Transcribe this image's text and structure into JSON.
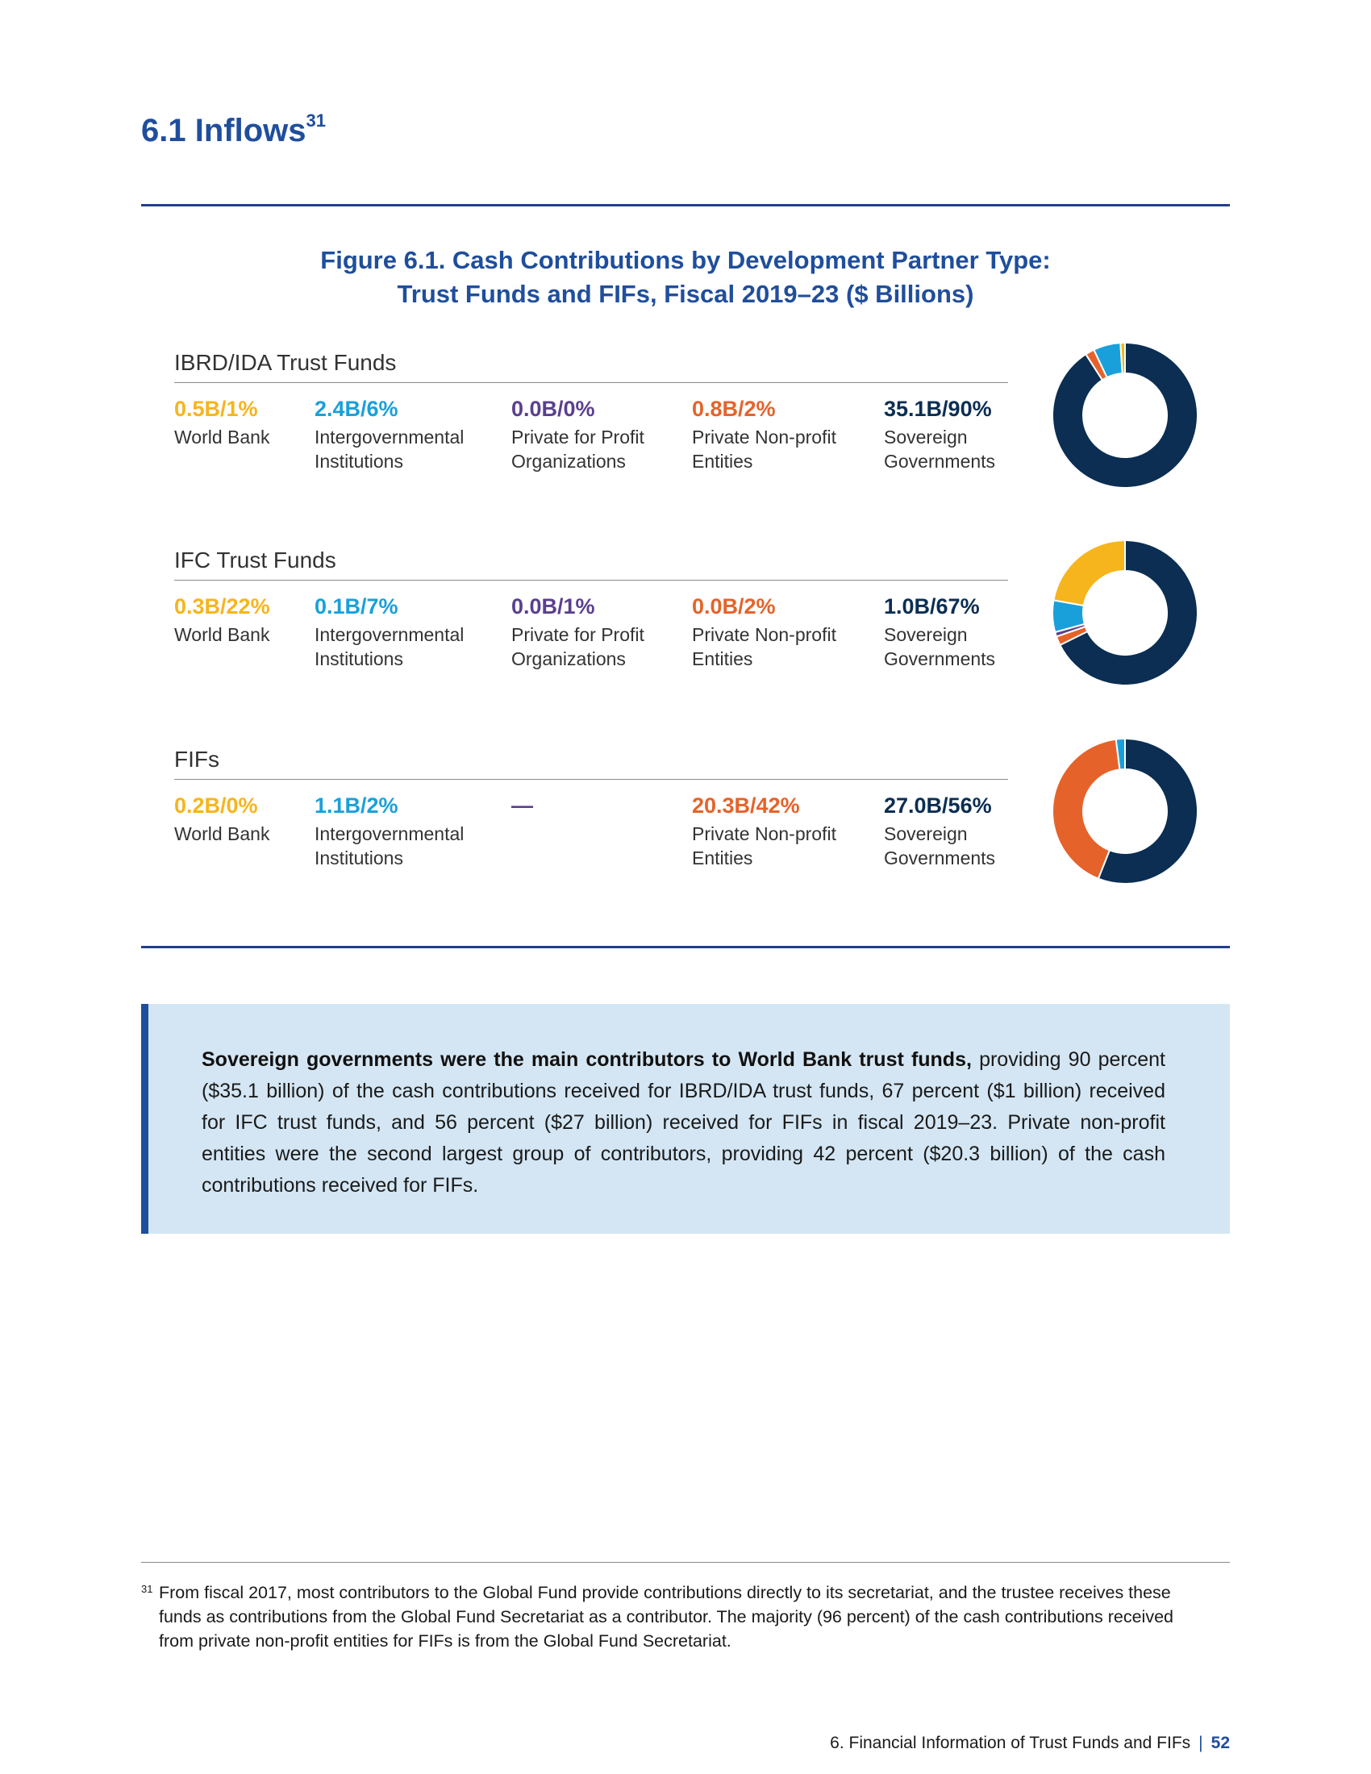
{
  "section": {
    "title": "6.1 Inflows",
    "footnote_ref": "31"
  },
  "figure": {
    "title_line1": "Figure 6.1. Cash Contributions by Development Partner Type:",
    "title_line2": "Trust Funds and FIFs, Fiscal 2019–23 ($ Billions)"
  },
  "colors": {
    "world_bank": "#f6b51d",
    "intergovernmental": "#19a0da",
    "private_for_profit": "#5b3f8f",
    "private_nonprofit": "#e5632a",
    "sovereign": "#0b2e52"
  },
  "chart_data": [
    {
      "type": "pie",
      "title": "IBRD/IDA Trust Funds",
      "categories": [
        "World Bank",
        "Intergovernmental Institutions",
        "Private for Profit Organizations",
        "Private Non-profit Entities",
        "Sovereign Governments"
      ],
      "value_labels": [
        "0.5B/1%",
        "2.4B/6%",
        "0.0B/0%",
        "0.8B/2%",
        "35.1B/90%"
      ],
      "values_billion": [
        0.5,
        2.4,
        0.0,
        0.8,
        35.1
      ],
      "percent": [
        1,
        6,
        0,
        2,
        90
      ]
    },
    {
      "type": "pie",
      "title": "IFC Trust Funds",
      "categories": [
        "World Bank",
        "Intergovernmental Institutions",
        "Private for Profit Organizations",
        "Private Non-profit Entities",
        "Sovereign Governments"
      ],
      "value_labels": [
        "0.3B/22%",
        "0.1B/7%",
        "0.0B/1%",
        "0.0B/2%",
        "1.0B/67%"
      ],
      "values_billion": [
        0.3,
        0.1,
        0.0,
        0.0,
        1.0
      ],
      "percent": [
        22,
        7,
        1,
        2,
        67
      ]
    },
    {
      "type": "pie",
      "title": "FIFs",
      "categories": [
        "World Bank",
        "Intergovernmental Institutions",
        "",
        "Private Non-profit Entities",
        "Sovereign Governments"
      ],
      "value_labels": [
        "0.2B/0%",
        "1.1B/2%",
        "—",
        "20.3B/42%",
        "27.0B/56%"
      ],
      "values_billion": [
        0.2,
        1.1,
        null,
        20.3,
        27.0
      ],
      "percent": [
        0,
        2,
        0,
        42,
        56
      ]
    }
  ],
  "callout": {
    "bold": "Sovereign governments were the main contributors to World Bank trust funds,",
    "text": " providing 90 percent ($35.1 billion) of the cash contributions received for IBRD/IDA trust funds, 67 percent ($1 billion) received for IFC trust funds, and 56 percent ($27 billion) received for FIFs in fiscal 2019–23. Private non-profit entities were the second largest group of contributors, providing 42 percent ($20.3 billion) of the cash contributions received for FIFs."
  },
  "footnote": {
    "number": "31",
    "text": "From fiscal 2017, most contributors to the Global Fund provide contributions directly to its secretariat, and the trustee receives these funds as contributions from the Global Fund Secretariat as a contributor. The majority (96 percent) of the cash contributions received from private non-profit entities for FIFs is from the Global Fund Secretariat."
  },
  "footer": {
    "chapter": "6. Financial Information of Trust Funds and FIFs",
    "separator": "|",
    "page": "52"
  }
}
